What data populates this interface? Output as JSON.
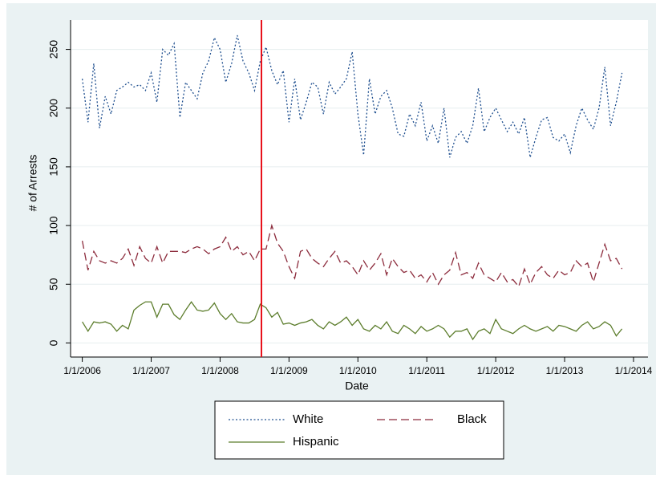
{
  "chart_data": {
    "type": "line",
    "x": [
      2006,
      2006.083,
      2006.167,
      2006.25,
      2006.333,
      2006.417,
      2006.5,
      2006.583,
      2006.667,
      2006.75,
      2006.833,
      2006.917,
      2007,
      2007.083,
      2007.167,
      2007.25,
      2007.333,
      2007.417,
      2007.5,
      2007.583,
      2007.667,
      2007.75,
      2007.833,
      2007.917,
      2008,
      2008.083,
      2008.167,
      2008.25,
      2008.333,
      2008.417,
      2008.5,
      2008.583,
      2008.667,
      2008.75,
      2008.833,
      2008.917,
      2009,
      2009.083,
      2009.167,
      2009.25,
      2009.333,
      2009.417,
      2009.5,
      2009.583,
      2009.667,
      2009.75,
      2009.833,
      2009.917,
      2010,
      2010.083,
      2010.167,
      2010.25,
      2010.333,
      2010.417,
      2010.5,
      2010.583,
      2010.667,
      2010.75,
      2010.833,
      2010.917,
      2011,
      2011.083,
      2011.167,
      2011.25,
      2011.333,
      2011.417,
      2011.5,
      2011.583,
      2011.667,
      2011.75,
      2011.833,
      2011.917,
      2012,
      2012.083,
      2012.167,
      2012.25,
      2012.333,
      2012.417,
      2012.5,
      2012.583,
      2012.667,
      2012.75,
      2012.833,
      2012.917,
      2013,
      2013.083,
      2013.167,
      2013.25,
      2013.333,
      2013.417,
      2013.5,
      2013.583,
      2013.667,
      2013.75,
      2013.833
    ],
    "series": [
      {
        "name": "White",
        "color": "#1f4f8f",
        "style": "dotted",
        "values": [
          225,
          188,
          238,
          183,
          210,
          195,
          215,
          218,
          222,
          218,
          220,
          215,
          230,
          205,
          250,
          245,
          255,
          192,
          222,
          215,
          208,
          230,
          240,
          260,
          250,
          222,
          238,
          262,
          240,
          230,
          215,
          240,
          252,
          232,
          220,
          232,
          188,
          225,
          190,
          205,
          222,
          218,
          195,
          222,
          212,
          218,
          225,
          248,
          195,
          160,
          225,
          195,
          210,
          215,
          200,
          178,
          176,
          195,
          185,
          205,
          172,
          185,
          170,
          200,
          158,
          175,
          180,
          170,
          185,
          217,
          180,
          192,
          200,
          190,
          180,
          188,
          178,
          192,
          158,
          175,
          190,
          192,
          175,
          172,
          178,
          162,
          185,
          200,
          190,
          182,
          200,
          235,
          185,
          205,
          230
        ]
      },
      {
        "name": "Black",
        "color": "#8c2b3c",
        "style": "dashed",
        "values": [
          87,
          62,
          78,
          70,
          68,
          70,
          68,
          72,
          80,
          66,
          82,
          72,
          68,
          82,
          68,
          78,
          78,
          78,
          77,
          80,
          82,
          80,
          76,
          80,
          82,
          90,
          78,
          82,
          75,
          78,
          70,
          80,
          80,
          100,
          85,
          78,
          65,
          55,
          78,
          80,
          72,
          68,
          65,
          72,
          78,
          68,
          70,
          65,
          58,
          70,
          62,
          68,
          76,
          58,
          72,
          65,
          60,
          62,
          55,
          58,
          52,
          60,
          50,
          58,
          62,
          77,
          58,
          60,
          55,
          68,
          58,
          55,
          52,
          60,
          52,
          54,
          48,
          63,
          50,
          60,
          65,
          58,
          55,
          62,
          58,
          60,
          70,
          65,
          68,
          52,
          68,
          84,
          70,
          72,
          63
        ]
      },
      {
        "name": "Hispanic",
        "color": "#5c7d2c",
        "style": "solid",
        "values": [
          18,
          10,
          18,
          17,
          18,
          16,
          10,
          15,
          12,
          28,
          32,
          35,
          35,
          22,
          33,
          33,
          24,
          20,
          28,
          35,
          28,
          27,
          28,
          34,
          25,
          20,
          25,
          18,
          17,
          17,
          20,
          33,
          30,
          22,
          26,
          16,
          17,
          15,
          17,
          18,
          20,
          15,
          12,
          18,
          15,
          18,
          22,
          15,
          20,
          12,
          10,
          15,
          12,
          18,
          10,
          8,
          15,
          12,
          8,
          14,
          10,
          12,
          15,
          12,
          5,
          10,
          10,
          12,
          3,
          10,
          12,
          8,
          20,
          12,
          10,
          8,
          12,
          15,
          12,
          10,
          12,
          14,
          10,
          15,
          14,
          12,
          10,
          15,
          18,
          12,
          14,
          18,
          15,
          6,
          12
        ]
      }
    ],
    "xlim": [
      2005.83,
      2014.21
    ],
    "xticks": [
      {
        "value": 2006,
        "label": "1/1/2006"
      },
      {
        "value": 2007,
        "label": "1/1/2007"
      },
      {
        "value": 2008,
        "label": "1/1/2008"
      },
      {
        "value": 2009,
        "label": "1/1/2009"
      },
      {
        "value": 2010,
        "label": "1/1/2010"
      },
      {
        "value": 2011,
        "label": "1/1/2011"
      },
      {
        "value": 2012,
        "label": "1/1/2012"
      },
      {
        "value": 2013,
        "label": "1/1/2013"
      },
      {
        "value": 2014,
        "label": "1/1/2014"
      }
    ],
    "ylim": [
      -12,
      275
    ],
    "yticks": [
      0,
      50,
      100,
      150,
      200,
      250
    ],
    "grid": true,
    "xlabel": "Date",
    "ylabel": "# of Arrests",
    "reference_line": {
      "x": 2008.6,
      "color": "#e8101a"
    },
    "legend": "bottom"
  }
}
